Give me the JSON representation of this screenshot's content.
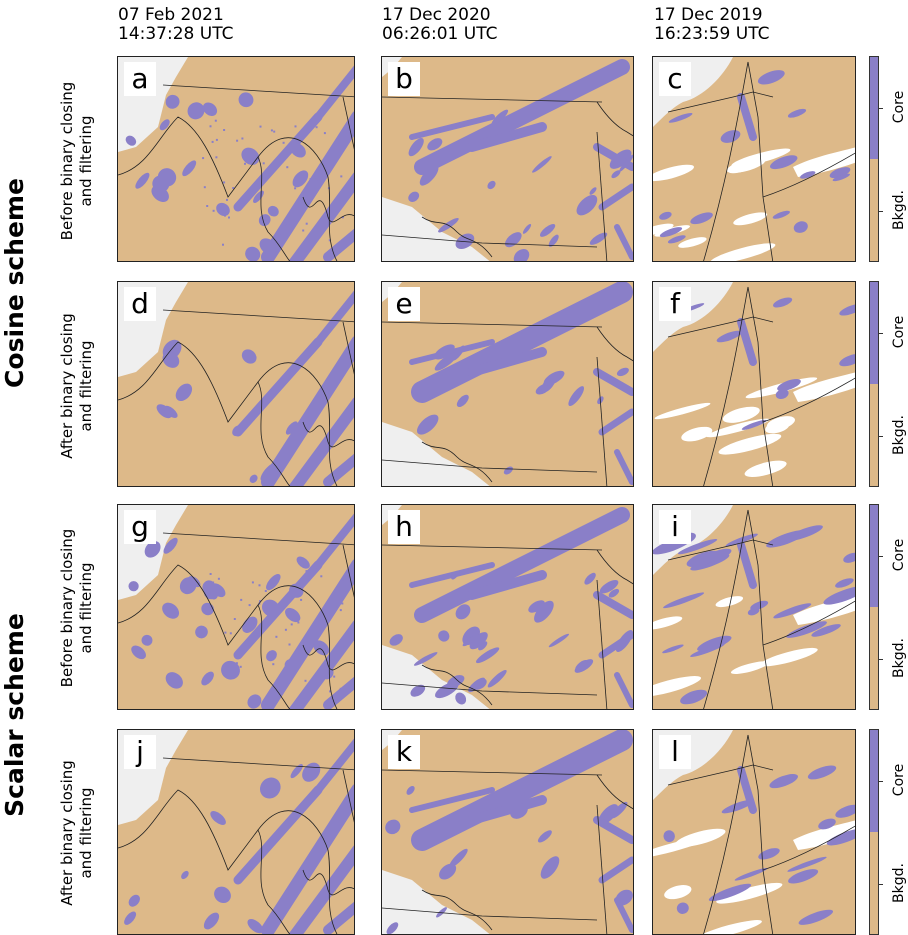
{
  "columns": [
    {
      "date": "07 Feb 2021",
      "time": "14:37:28 UTC"
    },
    {
      "date": "17 Dec 2020",
      "time": "06:26:01 UTC"
    },
    {
      "date": "17 Dec 2019",
      "time": "16:23:59 UTC"
    }
  ],
  "schemes": [
    "Cosine scheme",
    "Scalar scheme"
  ],
  "rows": [
    {
      "line1": "Before binary closing",
      "line2": "and filtering"
    },
    {
      "line1": "After binary closing",
      "line2": "and filtering"
    },
    {
      "line1": "Before binary closing",
      "line2": "and filtering"
    },
    {
      "line1": "After binary closing",
      "line2": "and filtering"
    }
  ],
  "panel_letters": [
    "a",
    "b",
    "c",
    "d",
    "e",
    "f",
    "g",
    "h",
    "i",
    "j",
    "k",
    "l"
  ],
  "colorbar": {
    "top_label": "Core",
    "bottom_label": "Bkgd."
  },
  "colors": {
    "core": "#8a7fc8",
    "background": "#ddb989",
    "missing": "#efefef",
    "boundary": "#222222"
  }
}
